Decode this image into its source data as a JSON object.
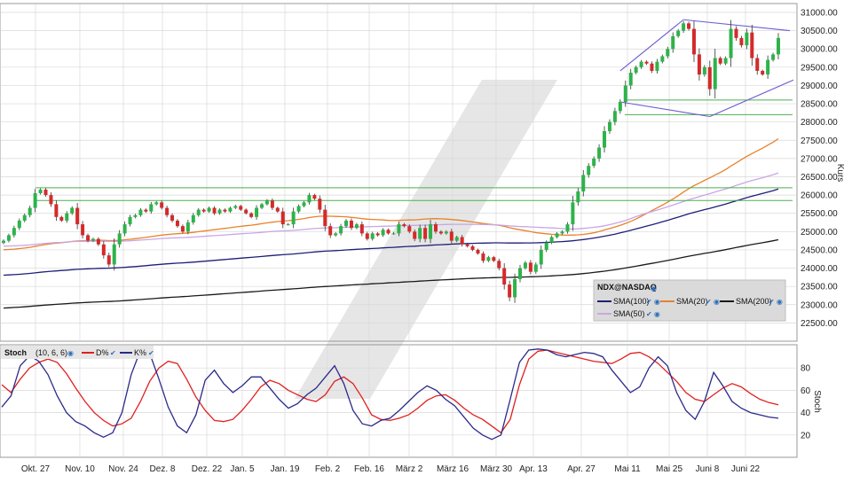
{
  "chart_data": [
    {
      "type": "candlestick",
      "instrument": "NDX@NASDAQ",
      "ylabel": "Kurs",
      "ylim": [
        22000,
        31000
      ],
      "yticks": [
        "22500.00",
        "23000.00",
        "23500.00",
        "24000.00",
        "24500.00",
        "25000.00",
        "25500.00",
        "26000.00",
        "26500.00",
        "27000.00",
        "27500.00",
        "28000.00",
        "28500.00",
        "29000.00",
        "29500.00",
        "30000.00",
        "30500.00",
        "31000.00"
      ],
      "xticks": [
        "Okt. 27",
        "Nov. 10",
        "Nov. 24",
        "Dez. 8",
        "Dez. 22",
        "Jan. 5",
        "Jan. 19",
        "Feb. 2",
        "Feb. 16",
        "März 2",
        "März 16",
        "März 30",
        "Apr. 13",
        "Apr. 27",
        "Mai 11",
        "Mai 25",
        "Juni 8",
        "Juni 22"
      ],
      "closes": [
        24750,
        24900,
        25100,
        25300,
        25450,
        25650,
        26050,
        26150,
        26000,
        25750,
        25400,
        25300,
        25500,
        25650,
        25200,
        24900,
        24750,
        24800,
        24650,
        24350,
        24100,
        24650,
        24950,
        25200,
        25400,
        25450,
        25600,
        25550,
        25750,
        25800,
        25650,
        25450,
        25300,
        25150,
        25000,
        25250,
        25450,
        25600,
        25550,
        25650,
        25500,
        25600,
        25550,
        25650,
        25700,
        25600,
        25500,
        25400,
        25650,
        25750,
        25850,
        25650,
        25550,
        25200,
        25200,
        25550,
        25700,
        25800,
        26000,
        25900,
        25600,
        25150,
        24900,
        24950,
        25150,
        25300,
        25100,
        25200,
        24950,
        24800,
        24950,
        24900,
        25050,
        24950,
        24950,
        25200,
        25150,
        25000,
        24800,
        25100,
        24800,
        25200,
        25000,
        24950,
        25000,
        24750,
        24850,
        24650,
        24600,
        24500,
        24400,
        24200,
        24300,
        24200,
        24000,
        23550,
        23200,
        23700,
        24000,
        24150,
        23900,
        24100,
        24500,
        24700,
        24850,
        24950,
        25000,
        25200,
        25800,
        26100,
        26550,
        26800,
        27000,
        27300,
        27750,
        28000,
        28300,
        28550,
        29000,
        29350,
        29500,
        29650,
        29600,
        29400,
        29650,
        29800,
        30000,
        30350,
        30500,
        30700,
        30550,
        29850,
        29300,
        29500,
        28900,
        29750,
        29600,
        29750,
        30550,
        30300,
        30100,
        30450,
        29750,
        29400,
        29300,
        29700,
        29850,
        30300
      ],
      "support_lines": [
        26200,
        25850,
        28600,
        28200
      ],
      "series": [
        {
          "name": "SMA(100)",
          "color": "#1e1e78"
        },
        {
          "name": "SMA(20)",
          "color": "#e8822a"
        },
        {
          "name": "SMA(200)",
          "color": "#1a1a1a"
        },
        {
          "name": "SMA(50)",
          "color": "#c9a6e6"
        }
      ],
      "colors": {
        "up": "#2db34a",
        "down": "#d42a2a",
        "trendline": "#6b5ccf",
        "support": "#4caf50",
        "grid": "#d8d8d8"
      }
    },
    {
      "type": "line",
      "indicator": "Stoch",
      "params": "(10, 6, 6)",
      "ylabel": "Stoch",
      "ylim": [
        0,
        100
      ],
      "yticks": [
        "20",
        "40",
        "60",
        "80"
      ],
      "series": [
        {
          "name": "D%",
          "color": "#e02020",
          "values": [
            65,
            58,
            70,
            80,
            85,
            88,
            85,
            75,
            62,
            50,
            40,
            33,
            28,
            30,
            35,
            50,
            68,
            80,
            86,
            84,
            70,
            54,
            42,
            33,
            32,
            34,
            42,
            52,
            63,
            69,
            66,
            60,
            56,
            52,
            50,
            56,
            68,
            72,
            66,
            53,
            38,
            34,
            33,
            35,
            38,
            44,
            51,
            55,
            56,
            51,
            44,
            38,
            34,
            28,
            22,
            34,
            65,
            88,
            95,
            96,
            94,
            92,
            90,
            88,
            86,
            85,
            84,
            88,
            93,
            94,
            90,
            84,
            76,
            68,
            58,
            52,
            50,
            56,
            62,
            66,
            63,
            57,
            52,
            49,
            47
          ]
        },
        {
          "name": "K%",
          "color": "#2a2a8a",
          "values": [
            45,
            55,
            82,
            91,
            86,
            74,
            55,
            40,
            32,
            28,
            22,
            18,
            22,
            40,
            74,
            96,
            93,
            70,
            45,
            28,
            22,
            38,
            69,
            78,
            66,
            58,
            64,
            72,
            72,
            62,
            52,
            44,
            48,
            56,
            62,
            72,
            82,
            66,
            42,
            30,
            28,
            33,
            35,
            42,
            50,
            58,
            64,
            60,
            52,
            46,
            36,
            26,
            20,
            16,
            20,
            52,
            85,
            96,
            97,
            96,
            92,
            90,
            92,
            94,
            93,
            90,
            78,
            68,
            58,
            63,
            80,
            90,
            82,
            58,
            42,
            34,
            50,
            76,
            64,
            50,
            44,
            40,
            38,
            36,
            35
          ]
        }
      ]
    }
  ],
  "legend": {
    "title": "NDX@NASDAQ",
    "items": [
      "SMA(100)",
      "SMA(20)",
      "SMA(200)",
      "SMA(50)"
    ]
  },
  "stoch_header": {
    "label": "Stoch",
    "params": "(10, 6, 6)",
    "items": [
      "D%",
      "K%"
    ]
  }
}
